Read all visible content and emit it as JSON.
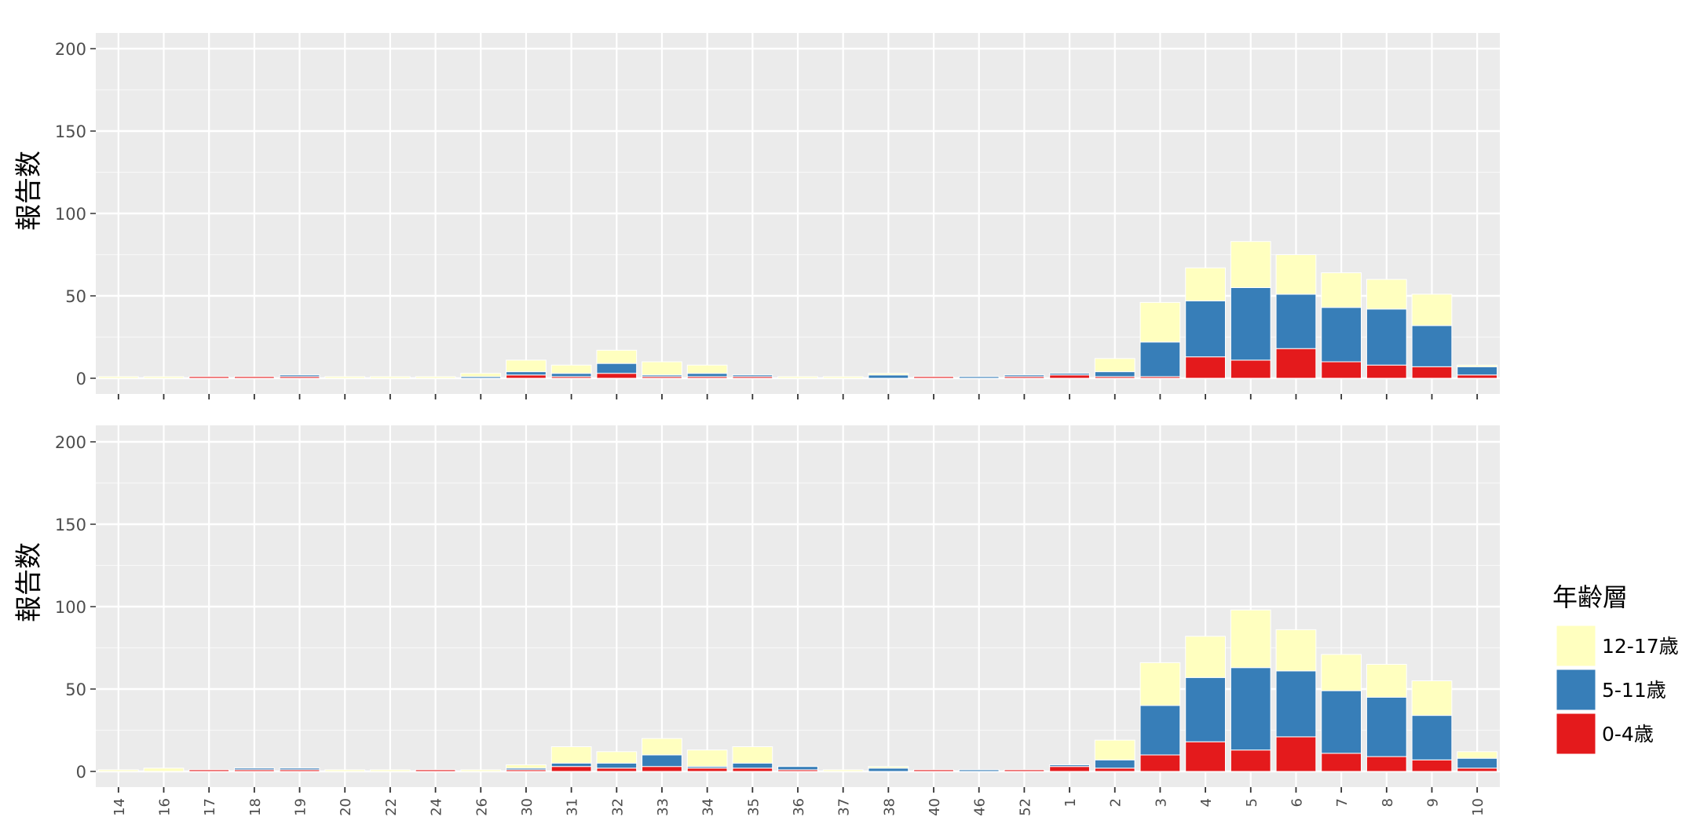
{
  "chart_data": {
    "type": "bar",
    "stacked": true,
    "ylabel": "報告数",
    "xlabel": "",
    "ylim": [
      0,
      200
    ],
    "yticks": [
      0,
      50,
      100,
      150,
      200
    ],
    "grid": true,
    "legend": {
      "title": "年齢層",
      "placement": "right",
      "entries": [
        "12-17歳",
        "5-11歳",
        "0-4歳"
      ]
    },
    "colors": {
      "12-17歳": "#ffffbf",
      "5-11歳": "#377eb8",
      "0-4歳": "#e41a1c",
      "panel": "#ebebeb",
      "grid": "#ffffff"
    },
    "categories": [
      "14",
      "16",
      "17",
      "18",
      "19",
      "20",
      "22",
      "24",
      "26",
      "30",
      "31",
      "32",
      "33",
      "34",
      "35",
      "36",
      "37",
      "38",
      "40",
      "46",
      "52",
      "1",
      "2",
      "3",
      "4",
      "5",
      "6",
      "7",
      "8",
      "9",
      "10"
    ],
    "panels": [
      {
        "series": [
          {
            "name": "0-4歳",
            "values": [
              0,
              0,
              1,
              1,
              1,
              0,
              0,
              0,
              0,
              2,
              1,
              3,
              1,
              1,
              1,
              0,
              0,
              0,
              1,
              0,
              1,
              2,
              1,
              1,
              13,
              11,
              18,
              10,
              8,
              7,
              2
            ]
          },
          {
            "name": "5-11歳",
            "values": [
              0,
              0,
              0,
              0,
              1,
              0,
              0,
              0,
              1,
              2,
              2,
              6,
              1,
              2,
              1,
              0,
              0,
              2,
              0,
              1,
              1,
              1,
              3,
              21,
              34,
              44,
              33,
              33,
              34,
              25,
              5
            ]
          },
          {
            "name": "12-17歳",
            "values": [
              1,
              1,
              0,
              0,
              0,
              1,
              1,
              1,
              2,
              7,
              5,
              8,
              8,
              5,
              0,
              1,
              1,
              1,
              0,
              0,
              0,
              0,
              8,
              24,
              20,
              28,
              24,
              21,
              18,
              19,
              1
            ]
          }
        ]
      },
      {
        "series": [
          {
            "name": "0-4歳",
            "values": [
              0,
              0,
              1,
              1,
              1,
              0,
              0,
              1,
              0,
              1,
              3,
              2,
              3,
              2,
              2,
              1,
              0,
              0,
              1,
              0,
              1,
              3,
              2,
              10,
              18,
              13,
              21,
              11,
              9,
              7,
              2
            ]
          },
          {
            "name": "5-11歳",
            "values": [
              0,
              0,
              0,
              1,
              1,
              0,
              0,
              0,
              0,
              1,
              2,
              3,
              7,
              1,
              3,
              2,
              0,
              2,
              0,
              1,
              0,
              1,
              5,
              30,
              39,
              50,
              40,
              38,
              36,
              27,
              6
            ]
          },
          {
            "name": "12-17歳",
            "values": [
              1,
              2,
              0,
              0,
              0,
              1,
              1,
              0,
              1,
              2,
              10,
              7,
              10,
              10,
              10,
              0,
              1,
              1,
              0,
              0,
              0,
              0,
              12,
              26,
              25,
              35,
              25,
              22,
              20,
              21,
              4
            ]
          }
        ]
      }
    ]
  }
}
